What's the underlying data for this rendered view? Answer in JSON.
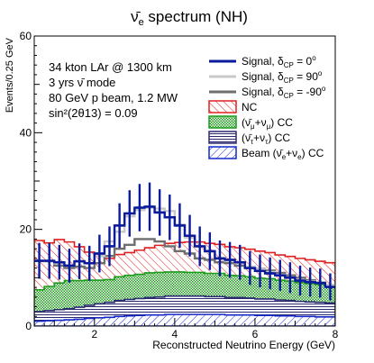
{
  "chart_data": {
    "type": "line",
    "title": "ν̄e spectrum (NH)",
    "title_main": "ν̄",
    "title_sub": "e",
    "title_rest": " spectrum (NH)",
    "xlabel": "Reconstructed Neutrino Energy (GeV)",
    "ylabel": "Events/0.25 GeV",
    "xlim": [
      0.5,
      8
    ],
    "ylim": [
      0,
      60
    ],
    "x_ticks": [
      2,
      4,
      6,
      8
    ],
    "y_ticks": [
      0,
      20,
      40,
      60
    ],
    "grid": false,
    "legend_position": "top-right",
    "annotation_lines": [
      "34 kton LAr @ 1300 km",
      "3 yrs ν̄ mode",
      "80 GeV p beam, 1.2 MW",
      "sin²(2θ13) = 0.09"
    ],
    "bin_width": 0.25,
    "bin_edges_start": 0.5,
    "series": [
      {
        "name": "Signal, δCP = 0°",
        "legend_label": "Signal, δ",
        "legend_sub": "CP",
        "legend_rest": " = 0",
        "legend_sup": "o",
        "kind": "step-errorbars",
        "color": "#0a1a9c",
        "values": [
          13.5,
          13.5,
          13.2,
          12.5,
          13.4,
          13.0,
          15.0,
          16.5,
          20.8,
          23.3,
          24.5,
          24.7,
          23.5,
          22.5,
          20.8,
          18.7,
          16.5,
          15.5,
          14.0,
          13.7,
          13.2,
          12.0,
          11.4,
          10.9,
          10.5,
          10.0,
          9.4,
          9.1,
          8.9,
          8.1
        ],
        "errors": [
          3.7,
          3.7,
          3.6,
          3.5,
          3.7,
          3.6,
          3.9,
          4.1,
          4.6,
          4.8,
          4.9,
          5.0,
          4.8,
          4.7,
          4.6,
          4.3,
          4.1,
          3.9,
          3.7,
          3.7,
          3.6,
          3.5,
          3.4,
          3.3,
          3.2,
          3.2,
          3.1,
          3.0,
          3.0,
          2.8
        ]
      },
      {
        "name": "Signal, δCP = 90°",
        "legend_label": "Signal, δ",
        "legend_sub": "CP",
        "legend_rest": " = 90",
        "legend_sup": "o",
        "kind": "step",
        "color": "#c8c8c8",
        "values": [
          13.5,
          13.4,
          13.0,
          12.5,
          13.4,
          13.0,
          14.5,
          17.5,
          19.5,
          22.7,
          24.0,
          24.5,
          24.3,
          23.8,
          21.0,
          18.3,
          16.5,
          15.3,
          14.0,
          13.5,
          13.0,
          12.3,
          11.7,
          11.2,
          10.6,
          10.0,
          9.5,
          9.2,
          8.9,
          8.5
        ]
      },
      {
        "name": "Signal, δCP = -90°",
        "legend_label": "Signal, δ",
        "legend_sub": "CP",
        "legend_rest": " = -90",
        "legend_sup": "o",
        "kind": "step",
        "color": "#6e6e6e",
        "values": [
          13.5,
          13.4,
          12.5,
          12.0,
          12.3,
          12.0,
          13.0,
          14.5,
          16.0,
          16.8,
          18.0,
          18.0,
          17.5,
          16.5,
          15.5,
          15.0,
          14.0,
          13.7,
          13.2,
          13.0,
          12.5,
          12.0,
          11.8,
          11.5,
          11.0,
          10.5,
          10.0,
          9.5,
          9.0,
          8.5
        ]
      },
      {
        "name": "NC",
        "legend_label": "NC",
        "kind": "stack",
        "color": "#e02020",
        "values": [
          10.2,
          9.0,
          9.0,
          8.0,
          7.0,
          5.8,
          5.0,
          4.4,
          4.6,
          4.7,
          5.0,
          5.2,
          5.6,
          5.9,
          6.1,
          6.3,
          6.3,
          6.2,
          6.0,
          5.9,
          5.8,
          5.7,
          5.6,
          5.4,
          5.2,
          5.1,
          5.0,
          4.9,
          4.8,
          4.7
        ]
      },
      {
        "name": "(ν̄μ+νμ) CC",
        "legend_label": "(ν̄",
        "legend_sub": "μ",
        "legend_rest": "+ν",
        "legend_sub2": "μ",
        "legend_rest2": ") CC",
        "kind": "stack",
        "color": "#1a9b1a",
        "values": [
          4.5,
          5.0,
          5.5,
          5.8,
          5.5,
          5.2,
          4.9,
          4.7,
          4.9,
          5.0,
          5.0,
          5.1,
          5.1,
          5.0,
          5.0,
          4.9,
          4.9,
          4.8,
          4.8,
          4.6,
          4.5,
          4.4,
          4.3,
          4.2,
          4.1,
          4.0,
          3.9,
          3.8,
          3.7,
          3.6
        ]
      },
      {
        "name": "(ν̄τ+ντ) CC",
        "legend_label": "(ν̄",
        "legend_sub": "τ",
        "legend_rest": "+ν",
        "legend_sub2": "τ",
        "legend_rest2": ") CC",
        "kind": "stack",
        "color": "#2a2a70",
        "values": [
          2.0,
          2.1,
          2.2,
          2.3,
          2.5,
          2.7,
          2.9,
          3.1,
          3.3,
          3.4,
          3.5,
          3.6,
          3.7,
          3.8,
          3.8,
          3.8,
          3.8,
          3.7,
          3.7,
          3.6,
          3.6,
          3.5,
          3.4,
          3.4,
          3.3,
          3.2,
          3.1,
          3.0,
          3.0,
          2.9
        ]
      },
      {
        "name": "Beam (ν̄e+νe) CC",
        "legend_label": "Beam (ν̄",
        "legend_sub": "e",
        "legend_rest": "+ν",
        "legend_sub2": "e",
        "legend_rest2": ") CC",
        "kind": "stack",
        "color": "#1428c8",
        "values": [
          1.0,
          1.1,
          1.2,
          1.3,
          1.4,
          1.6,
          1.7,
          1.8,
          2.0,
          2.1,
          2.2,
          2.3,
          2.3,
          2.4,
          2.4,
          2.4,
          2.4,
          2.4,
          2.4,
          2.3,
          2.3,
          2.3,
          2.2,
          2.2,
          2.1,
          2.1,
          2.0,
          2.0,
          1.9,
          1.9
        ]
      }
    ]
  }
}
